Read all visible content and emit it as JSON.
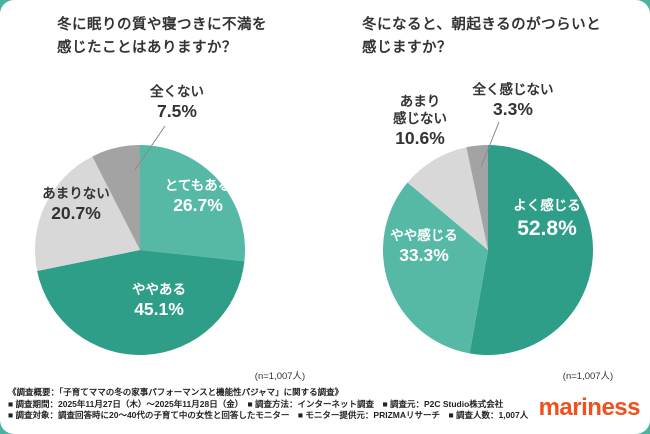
{
  "page": {
    "background_color": "#4ab3a0",
    "card_color": "#ffffff"
  },
  "chart_data": [
    {
      "type": "pie",
      "title": "冬に眠りの質や寝つきに不満を\n感じたことはありますか？",
      "n_label": "(n=1,007人)",
      "legend_position": "inside",
      "slices": [
        {
          "label": "とてもある",
          "value": 26.7,
          "color": "#56b9a6",
          "text_color": "#ffffff"
        },
        {
          "label": "ややある",
          "value": 45.1,
          "color": "#2f9e88",
          "text_color": "#ffffff"
        },
        {
          "label": "あまりない",
          "value": 20.7,
          "color": "#d8d8d8",
          "text_color": "#333333"
        },
        {
          "label": "全くない",
          "value": 7.5,
          "color": "#a3a3a3",
          "text_color": "#333333"
        }
      ]
    },
    {
      "type": "pie",
      "title": "冬になると、朝起きるのがつらいと\n感じますか？",
      "n_label": "(n=1,007人)",
      "legend_position": "inside",
      "slices": [
        {
          "label": "よく感じる",
          "value": 52.8,
          "color": "#2f9e88",
          "text_color": "#ffffff"
        },
        {
          "label": "やや感じる",
          "value": 33.3,
          "color": "#56b9a6",
          "text_color": "#ffffff"
        },
        {
          "label": "あまり感じない",
          "value": 10.6,
          "color": "#d8d8d8",
          "text_color": "#333333"
        },
        {
          "label": "全く感じない",
          "value": 3.3,
          "color": "#a3a3a3",
          "text_color": "#333333"
        }
      ]
    }
  ],
  "footer": {
    "lines": [
      "《調査概要：「子育てママの冬の家事パフォーマンスと機能性パジャマ」に関する調査》",
      "■ 調査期間：2025年11月27日（木）〜2025年11月28日（金）　■ 調査方法：インターネット調査　■ 調査元：P2C Studio株式会社",
      "■ 調査対象：調査回答時に20〜40代の子育て中の女性と回答したモニター　■ モニター提供元：PRIZMAリサーチ　■ 調査人数：1,007人"
    ]
  },
  "logo": {
    "text": "mariness",
    "color": "#f0501e"
  }
}
